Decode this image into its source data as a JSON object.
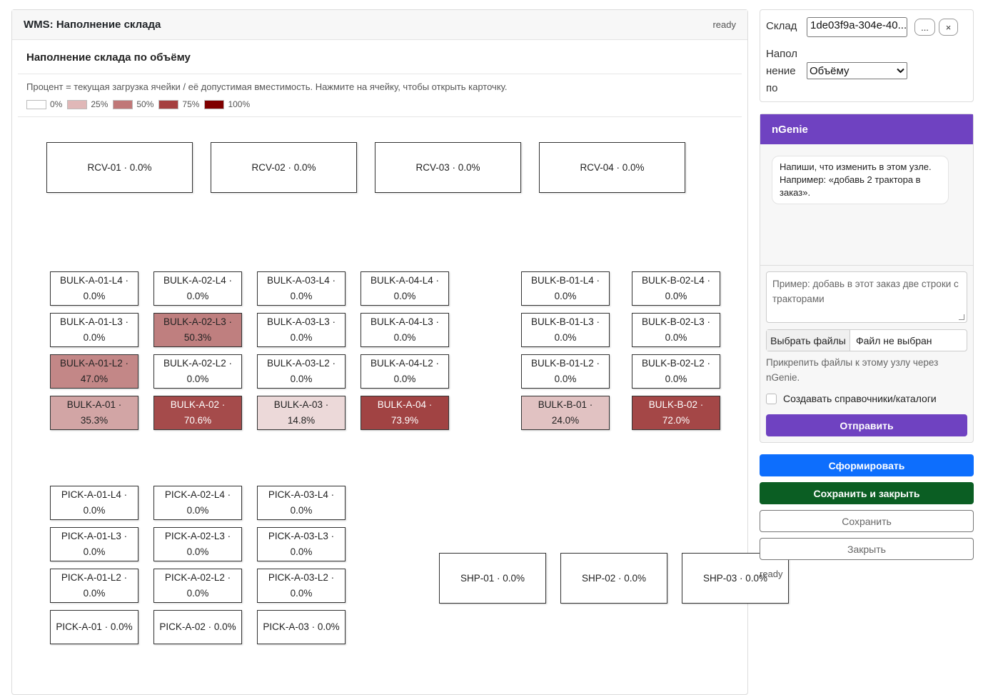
{
  "panel": {
    "title": "WMS: Наполнение склада",
    "status": "ready",
    "heading": "Наполнение склада по объёму",
    "note": "Процент = текущая загрузка ячейки / её допустимая вместимость. Нажмите на ячейку, чтобы открыть карточку."
  },
  "legend": [
    {
      "label": "0%",
      "color": "#ffffff"
    },
    {
      "label": "25%",
      "color": "#e0b8b8"
    },
    {
      "label": "50%",
      "color": "#c07878"
    },
    {
      "label": "75%",
      "color": "#a54040"
    },
    {
      "label": "100%",
      "color": "#800000"
    }
  ],
  "cells": {
    "receiving": [
      {
        "line1": "RCV-01 · 0.0%",
        "line2": "",
        "fill": 0.0
      },
      {
        "line1": "RCV-02 · 0.0%",
        "line2": "",
        "fill": 0.0
      },
      {
        "line1": "RCV-03 · 0.0%",
        "line2": "",
        "fill": 0.0
      },
      {
        "line1": "RCV-04 · 0.0%",
        "line2": "",
        "fill": 0.0
      }
    ],
    "bulk_a": [
      {
        "line1": "BULK-A-01-L4 ·",
        "line2": "0.0%",
        "fill": 0.0
      },
      {
        "line1": "BULK-A-02-L4 ·",
        "line2": "0.0%",
        "fill": 0.0
      },
      {
        "line1": "BULK-A-03-L4 ·",
        "line2": "0.0%",
        "fill": 0.0
      },
      {
        "line1": "BULK-A-04-L4 ·",
        "line2": "0.0%",
        "fill": 0.0
      },
      {
        "line1": "BULK-A-01-L3 ·",
        "line2": "0.0%",
        "fill": 0.0
      },
      {
        "line1": "BULK-A-02-L3 ·",
        "line2": "50.3%",
        "fill": 0.503
      },
      {
        "line1": "BULK-A-03-L3 ·",
        "line2": "0.0%",
        "fill": 0.0
      },
      {
        "line1": "BULK-A-04-L3 ·",
        "line2": "0.0%",
        "fill": 0.0
      },
      {
        "line1": "BULK-A-01-L2 ·",
        "line2": "47.0%",
        "fill": 0.47
      },
      {
        "line1": "BULK-A-02-L2 ·",
        "line2": "0.0%",
        "fill": 0.0
      },
      {
        "line1": "BULK-A-03-L2 ·",
        "line2": "0.0%",
        "fill": 0.0
      },
      {
        "line1": "BULK-A-04-L2 ·",
        "line2": "0.0%",
        "fill": 0.0
      },
      {
        "line1": "BULK-A-01 ·",
        "line2": "35.3%",
        "fill": 0.353
      },
      {
        "line1": "BULK-A-02 ·",
        "line2": "70.6%",
        "fill": 0.706
      },
      {
        "line1": "BULK-A-03 ·",
        "line2": "14.8%",
        "fill": 0.148
      },
      {
        "line1": "BULK-A-04 ·",
        "line2": "73.9%",
        "fill": 0.739
      }
    ],
    "bulk_b": [
      {
        "line1": "BULK-B-01-L4 ·",
        "line2": "0.0%",
        "fill": 0.0
      },
      {
        "line1": "BULK-B-02-L4 ·",
        "line2": "0.0%",
        "fill": 0.0
      },
      {
        "line1": "BULK-B-01-L3 ·",
        "line2": "0.0%",
        "fill": 0.0
      },
      {
        "line1": "BULK-B-02-L3 ·",
        "line2": "0.0%",
        "fill": 0.0
      },
      {
        "line1": "BULK-B-01-L2 ·",
        "line2": "0.0%",
        "fill": 0.0
      },
      {
        "line1": "BULK-B-02-L2 ·",
        "line2": "0.0%",
        "fill": 0.0
      },
      {
        "line1": "BULK-B-01 · 24.0%",
        "line2": "",
        "fill": 0.24
      },
      {
        "line1": "BULK-B-02 · 72.0%",
        "line2": "",
        "fill": 0.72
      }
    ],
    "pick_a": [
      {
        "line1": "PICK-A-01-L4 ·",
        "line2": "0.0%",
        "fill": 0.0
      },
      {
        "line1": "PICK-A-02-L4 ·",
        "line2": "0.0%",
        "fill": 0.0
      },
      {
        "line1": "PICK-A-03-L4 ·",
        "line2": "0.0%",
        "fill": 0.0
      },
      {
        "line1": "PICK-A-01-L3 ·",
        "line2": "0.0%",
        "fill": 0.0
      },
      {
        "line1": "PICK-A-02-L3 ·",
        "line2": "0.0%",
        "fill": 0.0
      },
      {
        "line1": "PICK-A-03-L3 ·",
        "line2": "0.0%",
        "fill": 0.0
      },
      {
        "line1": "PICK-A-01-L2 ·",
        "line2": "0.0%",
        "fill": 0.0
      },
      {
        "line1": "PICK-A-02-L2 ·",
        "line2": "0.0%",
        "fill": 0.0
      },
      {
        "line1": "PICK-A-03-L2 ·",
        "line2": "0.0%",
        "fill": 0.0
      },
      {
        "line1": "PICK-A-01 · 0.0%",
        "line2": "",
        "fill": 0.0
      },
      {
        "line1": "PICK-A-02 · 0.0%",
        "line2": "",
        "fill": 0.0
      },
      {
        "line1": "PICK-A-03 · 0.0%",
        "line2": "",
        "fill": 0.0
      }
    ],
    "shipping": [
      {
        "line1": "SHP-01 · 0.0%",
        "line2": "",
        "fill": 0.0
      },
      {
        "line1": "SHP-02 · 0.0%",
        "line2": "",
        "fill": 0.0
      },
      {
        "line1": "SHP-03 · 0.0%",
        "line2": "",
        "fill": 0.0
      }
    ]
  },
  "sidebar": {
    "warehouse_label": "Склад",
    "warehouse_value": "1de03f9a-304e-40...",
    "browse_label": "...",
    "clear_label": "×",
    "fill_label": "Наполнение по",
    "fill_value": "Объёму",
    "ngenie_title": "nGenie",
    "ngenie_message": "Напиши, что изменить в этом узле. Например: «добавь 2 трактора в заказ».",
    "ngenie_placeholder": "Пример: добавь в этот заказ две строки с тракторами",
    "choose_files": "Выбрать файлы",
    "no_file": "Файл не выбран",
    "attach_help": "Прикрепить файлы к этому узлу через nGenie.",
    "catalog_label": "Создавать справочники/каталоги",
    "send": "Отправить",
    "generate": "Сформировать",
    "save_close": "Сохранить и закрыть",
    "save": "Сохранить",
    "close": "Закрыть",
    "status": "ready"
  }
}
